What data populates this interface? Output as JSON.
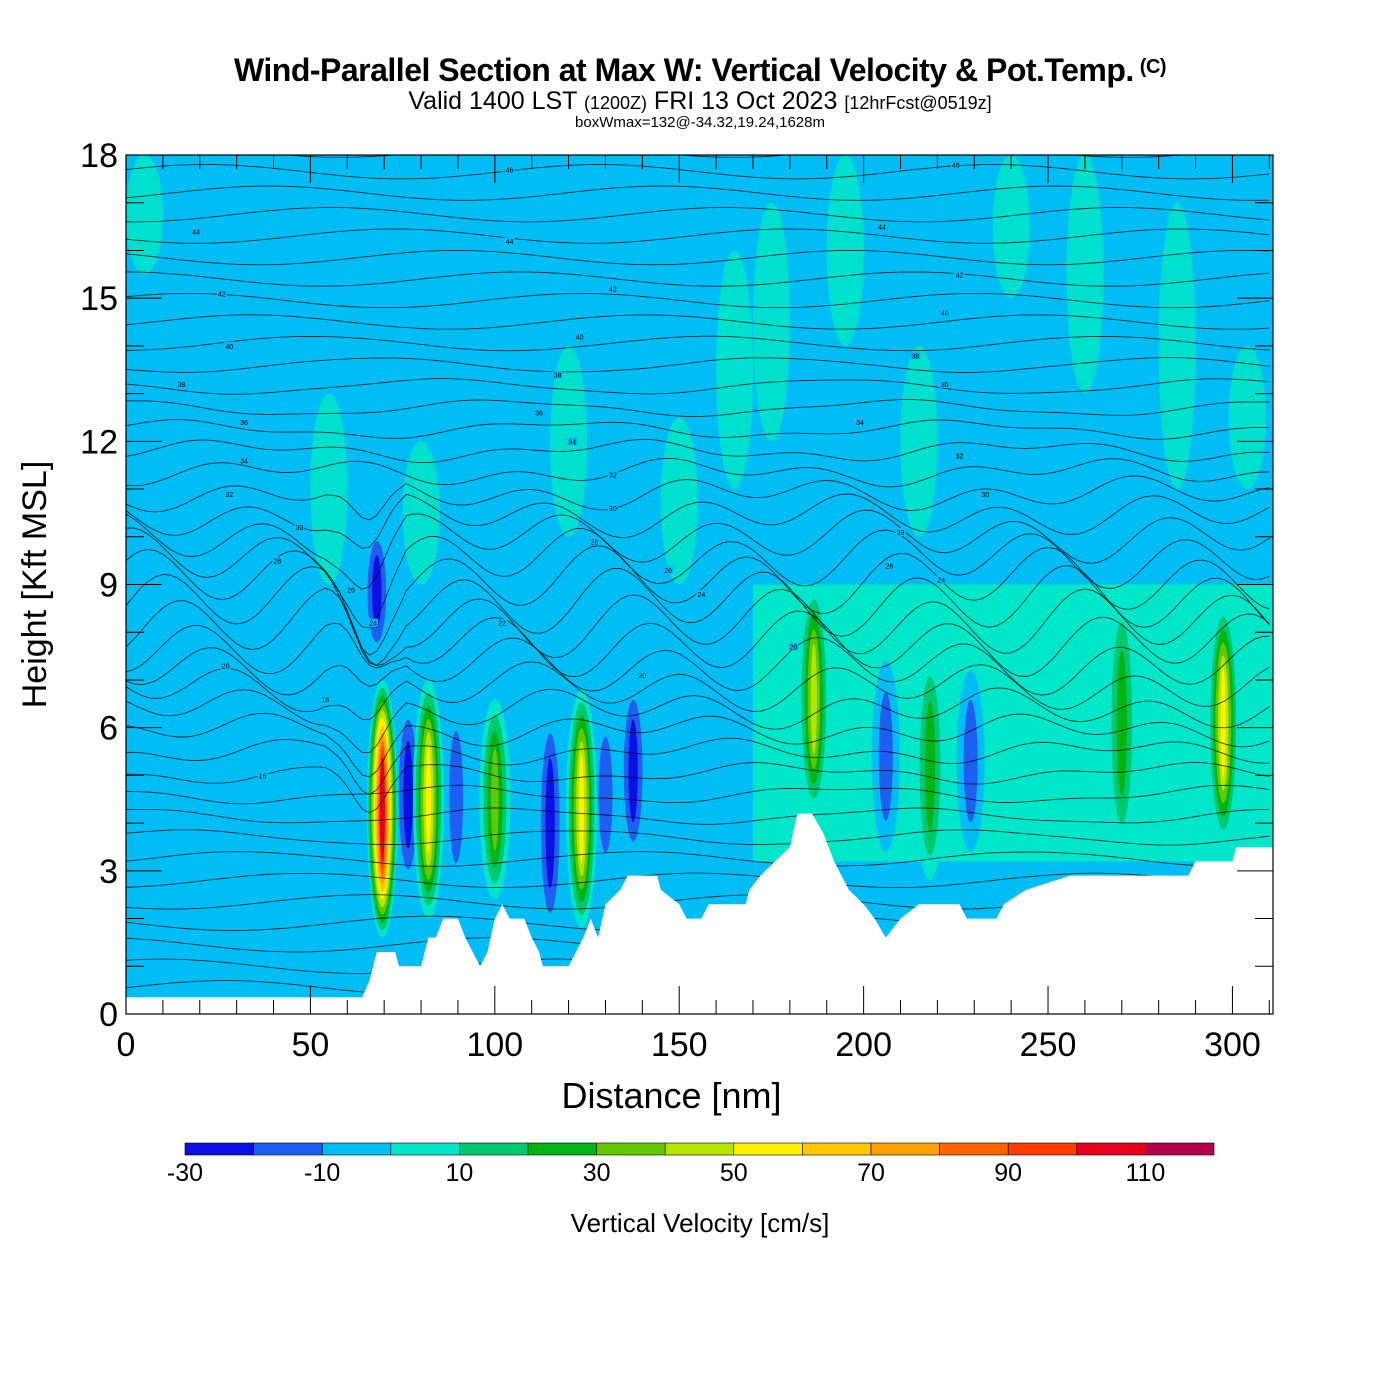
{
  "header": {
    "title": "Wind-Parallel Section at Max W: Vertical Velocity & Pot.Temp.",
    "copyright": "(C)",
    "subtitle_a": "Valid 1400 LST",
    "subtitle_b": "(1200Z)",
    "subtitle_c": "FRI 13 Oct 2023",
    "subtitle_d": "[12hrFcst@0519z]",
    "subtitle2": "boxWmax=132@-34.32,19.24,1628m"
  },
  "chart_data": {
    "type": "heatmap",
    "xlabel": "Distance [nm]",
    "ylabel": "Height [Kft MSL]",
    "xlim": [
      0,
      311
    ],
    "ylim": [
      0,
      18
    ],
    "xticks": [
      0,
      50,
      100,
      150,
      200,
      250,
      300
    ],
    "yticks": [
      0,
      3,
      6,
      9,
      12,
      15,
      18
    ],
    "background_value_range": [
      -10,
      0
    ],
    "colorbar": {
      "label": "Vertical Velocity [cm/s]",
      "bounds": [
        -30,
        -20,
        -10,
        0,
        10,
        20,
        30,
        40,
        50,
        60,
        70,
        80,
        90,
        100,
        110,
        120
      ],
      "tick_labels": [
        "-30",
        "-10",
        "10",
        "30",
        "50",
        "70",
        "90",
        "110"
      ],
      "colors": [
        "#0a10e6",
        "#1e5ef0",
        "#00bef5",
        "#00e6c8",
        "#00c86e",
        "#00b414",
        "#64c800",
        "#b4e600",
        "#fff000",
        "#ffc800",
        "#ffa000",
        "#ff6400",
        "#ff3c00",
        "#e6001e",
        "#b4004b"
      ]
    },
    "terrain": [
      [
        0,
        0.35
      ],
      [
        55,
        0.35
      ],
      [
        64,
        0.35
      ],
      [
        66,
        0.7
      ],
      [
        68,
        1.3
      ],
      [
        70,
        1.3
      ],
      [
        73,
        1.3
      ],
      [
        74,
        1.0
      ],
      [
        80,
        1.0
      ],
      [
        82,
        1.6
      ],
      [
        84,
        1.6
      ],
      [
        86,
        2.0
      ],
      [
        90,
        2.0
      ],
      [
        92,
        1.6
      ],
      [
        94,
        1.3
      ],
      [
        96,
        1.0
      ],
      [
        98,
        1.3
      ],
      [
        100,
        2.0
      ],
      [
        102,
        2.3
      ],
      [
        104,
        2.0
      ],
      [
        106,
        2.0
      ],
      [
        108,
        2.0
      ],
      [
        110,
        1.6
      ],
      [
        112,
        1.3
      ],
      [
        113,
        1.0
      ],
      [
        120,
        1.0
      ],
      [
        122,
        1.3
      ],
      [
        124,
        1.6
      ],
      [
        126,
        2.0
      ],
      [
        128,
        1.6
      ],
      [
        130,
        2.3
      ],
      [
        134,
        2.6
      ],
      [
        136,
        2.9
      ],
      [
        144,
        2.9
      ],
      [
        145,
        2.6
      ],
      [
        150,
        2.3
      ],
      [
        152,
        2.0
      ],
      [
        156,
        2.0
      ],
      [
        158,
        2.3
      ],
      [
        168,
        2.3
      ],
      [
        169,
        2.6
      ],
      [
        172,
        2.9
      ],
      [
        176,
        3.2
      ],
      [
        180,
        3.5
      ],
      [
        182,
        4.2
      ],
      [
        186,
        4.2
      ],
      [
        189,
        3.8
      ],
      [
        192,
        3.2
      ],
      [
        196,
        2.6
      ],
      [
        200,
        2.3
      ],
      [
        203,
        2.0
      ],
      [
        206,
        1.6
      ],
      [
        210,
        2.0
      ],
      [
        215,
        2.3
      ],
      [
        220,
        2.3
      ],
      [
        226,
        2.3
      ],
      [
        228,
        2.0
      ],
      [
        236,
        2.0
      ],
      [
        238,
        2.3
      ],
      [
        244,
        2.6
      ],
      [
        256,
        2.9
      ],
      [
        288,
        2.9
      ],
      [
        290,
        3.2
      ],
      [
        300,
        3.2
      ],
      [
        301,
        3.5
      ],
      [
        311,
        3.5
      ]
    ],
    "updrafts": [
      {
        "x": 69.5,
        "y_min": 1.6,
        "y_max": 7.0,
        "peak": 110
      },
      {
        "x": 82.0,
        "y_min": 2.0,
        "y_max": 7.0,
        "peak": 60
      },
      {
        "x": 100.0,
        "y_min": 2.4,
        "y_max": 6.6,
        "peak": 40
      },
      {
        "x": 123.5,
        "y_min": 1.8,
        "y_max": 6.8,
        "peak": 60
      },
      {
        "x": 186.5,
        "y_min": 4.2,
        "y_max": 9.0,
        "peak": 50
      },
      {
        "x": 218.0,
        "y_min": 2.8,
        "y_max": 7.6,
        "peak": 25
      },
      {
        "x": 270.0,
        "y_min": 3.4,
        "y_max": 8.8,
        "peak": 25
      },
      {
        "x": 297.5,
        "y_min": 3.6,
        "y_max": 8.6,
        "peak": 55
      }
    ],
    "downdrafts": [
      {
        "x": 68.0,
        "y_min": 7.5,
        "y_max": 10.2,
        "peak": -25
      },
      {
        "x": 76.5,
        "y_min": 2.6,
        "y_max": 6.6,
        "peak": -25
      },
      {
        "x": 89.5,
        "y_min": 2.5,
        "y_max": 6.6,
        "peak": -20
      },
      {
        "x": 115.0,
        "y_min": 1.6,
        "y_max": 6.4,
        "peak": -25
      },
      {
        "x": 130.0,
        "y_min": 2.8,
        "y_max": 6.4,
        "peak": -20
      },
      {
        "x": 137.5,
        "y_min": 3.2,
        "y_max": 7.0,
        "peak": -25
      },
      {
        "x": 206.0,
        "y_min": 3.4,
        "y_max": 7.4,
        "peak": -20
      },
      {
        "x": 229.0,
        "y_min": 3.4,
        "y_max": 7.2,
        "peak": -20
      }
    ],
    "theta_contour_labels": [
      {
        "x": 104,
        "y": 17.7,
        "text": "46"
      },
      {
        "x": 225,
        "y": 17.8,
        "text": "46"
      },
      {
        "x": 19,
        "y": 16.4,
        "text": "44"
      },
      {
        "x": 104,
        "y": 16.2,
        "text": "44"
      },
      {
        "x": 205,
        "y": 16.5,
        "text": "44"
      },
      {
        "x": 26,
        "y": 15.1,
        "text": "42"
      },
      {
        "x": 132,
        "y": 15.2,
        "text": "42"
      },
      {
        "x": 226,
        "y": 15.5,
        "text": "42"
      },
      {
        "x": 28,
        "y": 14.0,
        "text": "40"
      },
      {
        "x": 123,
        "y": 14.2,
        "text": "40"
      },
      {
        "x": 222,
        "y": 14.7,
        "text": "40"
      },
      {
        "x": 15,
        "y": 13.2,
        "text": "38"
      },
      {
        "x": 117,
        "y": 13.4,
        "text": "38"
      },
      {
        "x": 214,
        "y": 13.8,
        "text": "38"
      },
      {
        "x": 32,
        "y": 12.4,
        "text": "36"
      },
      {
        "x": 112,
        "y": 12.6,
        "text": "36"
      },
      {
        "x": 222,
        "y": 13.2,
        "text": "36"
      },
      {
        "x": 32,
        "y": 11.6,
        "text": "34"
      },
      {
        "x": 121,
        "y": 12.0,
        "text": "34"
      },
      {
        "x": 199,
        "y": 12.4,
        "text": "34"
      },
      {
        "x": 28,
        "y": 10.9,
        "text": "32"
      },
      {
        "x": 132,
        "y": 11.3,
        "text": "32"
      },
      {
        "x": 226,
        "y": 11.7,
        "text": "32"
      },
      {
        "x": 47,
        "y": 10.2,
        "text": "30"
      },
      {
        "x": 132,
        "y": 10.6,
        "text": "30"
      },
      {
        "x": 233,
        "y": 10.9,
        "text": "30"
      },
      {
        "x": 41,
        "y": 9.5,
        "text": "28"
      },
      {
        "x": 127,
        "y": 9.9,
        "text": "28"
      },
      {
        "x": 210,
        "y": 10.1,
        "text": "28"
      },
      {
        "x": 61,
        "y": 8.9,
        "text": "26"
      },
      {
        "x": 147,
        "y": 9.3,
        "text": "26"
      },
      {
        "x": 207,
        "y": 9.4,
        "text": "26"
      },
      {
        "x": 67,
        "y": 8.2,
        "text": "24"
      },
      {
        "x": 156,
        "y": 8.8,
        "text": "24"
      },
      {
        "x": 221,
        "y": 9.1,
        "text": "24"
      },
      {
        "x": 102,
        "y": 8.2,
        "text": "22"
      },
      {
        "x": 27,
        "y": 7.3,
        "text": "20"
      },
      {
        "x": 140,
        "y": 7.1,
        "text": "20"
      },
      {
        "x": 181,
        "y": 7.7,
        "text": "20"
      },
      {
        "x": 54,
        "y": 6.6,
        "text": "18"
      },
      {
        "x": 37,
        "y": 5.0,
        "text": "16"
      }
    ]
  },
  "colorbar_text": {
    "label": "Vertical Velocity [cm/s]"
  }
}
